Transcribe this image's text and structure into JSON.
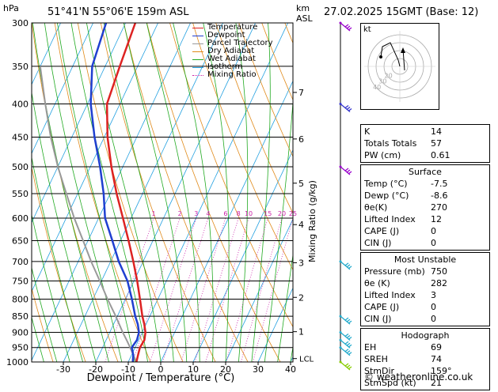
{
  "header": {
    "hpa_unit": "hPa",
    "location": "51°41'N  55°06'E  159m  ASL",
    "km_unit": "km",
    "asl_unit": "ASL",
    "datetime": "27.02.2025  15GMT  (Base: 12)"
  },
  "legend": [
    {
      "label": "Temperature",
      "color": "#dd2222",
      "style": "solid"
    },
    {
      "label": "Dewpoint",
      "color": "#1f3fd0",
      "style": "solid"
    },
    {
      "label": "Parcel Trajectory",
      "color": "#999999",
      "style": "solid"
    },
    {
      "label": "Dry Adiabat",
      "color": "#e08a1a",
      "style": "solid"
    },
    {
      "label": "Wet Adiabat",
      "color": "#22aa22",
      "style": "solid"
    },
    {
      "label": "Isotherm",
      "color": "#22a0e0",
      "style": "solid"
    },
    {
      "label": "Mixing Ratio",
      "color": "#cc22aa",
      "style": "dotted"
    }
  ],
  "chart_data": {
    "type": "line",
    "xlabel": "Dewpoint / Temperature (°C)",
    "ylabel_right": "Mixing Ratio (g/kg)",
    "x_ticks": [
      "-30",
      "-20",
      "-10",
      "0",
      "10",
      "20",
      "30",
      "40"
    ],
    "xlim": [
      -40,
      40
    ],
    "ylim": [
      1000,
      300
    ],
    "pressure_levels": [
      "300",
      "350",
      "400",
      "450",
      "500",
      "550",
      "600",
      "650",
      "700",
      "750",
      "800",
      "850",
      "900",
      "950",
      "1000"
    ],
    "km_ticks": [
      "1",
      "2",
      "3",
      "4",
      "5",
      "6",
      "7"
    ],
    "km_pressures": [
      898,
      795,
      703,
      614,
      530,
      453,
      384
    ],
    "lcl_label": "LCL",
    "lcl_pressure": 988,
    "mixing_ratio_labels": [
      "1",
      "2",
      "3",
      "4",
      "6",
      "8",
      "10",
      "15",
      "20",
      "25"
    ],
    "series": [
      {
        "name": "Temperature",
        "color": "#dd2222",
        "p": [
          1000,
          975,
          950,
          925,
          900,
          875,
          850,
          800,
          750,
          700,
          650,
          600,
          550,
          500,
          450,
          400,
          350,
          300
        ],
        "t": [
          -7.5,
          -8.0,
          -8.5,
          -8.2,
          -9.0,
          -10.5,
          -12.3,
          -15.5,
          -19.0,
          -23.0,
          -27.5,
          -32.5,
          -38.0,
          -43.5,
          -49.0,
          -54.0,
          -55.5,
          -57.0
        ]
      },
      {
        "name": "Dewpoint",
        "color": "#1f3fd0",
        "p": [
          1000,
          975,
          950,
          925,
          900,
          875,
          850,
          800,
          750,
          700,
          650,
          600,
          550,
          500,
          450,
          400,
          350,
          300
        ],
        "t": [
          -8.6,
          -9.5,
          -11.0,
          -10.5,
          -11.0,
          -12.5,
          -14.5,
          -18.0,
          -22.0,
          -27.5,
          -32.5,
          -38.0,
          -42.0,
          -47.0,
          -53.0,
          -59.0,
          -64.0,
          -66.0
        ]
      },
      {
        "name": "Parcel Trajectory",
        "color": "#999999",
        "p": [
          1000,
          975,
          950,
          925,
          900,
          850,
          800,
          750,
          700,
          650,
          600,
          550,
          500,
          450,
          400,
          350
        ],
        "t": [
          -7.5,
          -9.5,
          -11.5,
          -13.7,
          -16.0,
          -20.5,
          -25.5,
          -30.5,
          -36.0,
          -41.5,
          -47.5,
          -53.5,
          -60.0,
          -66.5,
          -73.0,
          -80.0
        ]
      }
    ]
  },
  "wind_barbs": [
    {
      "level": "300",
      "color": "#9900cc"
    },
    {
      "level": "400",
      "color": "#3333cc"
    },
    {
      "level": "500",
      "color": "#9900cc"
    },
    {
      "level": "700",
      "color": "#22aacc"
    },
    {
      "level": "850",
      "color": "#22aacc"
    },
    {
      "level": "900",
      "color": "#22aacc"
    },
    {
      "level": "925",
      "color": "#22aacc"
    },
    {
      "level": "950",
      "color": "#22aacc"
    },
    {
      "level": "1000",
      "color": "#88cc00"
    }
  ],
  "hodograph": {
    "unit": "kt",
    "ring_labels": [
      "20",
      "30",
      "40"
    ],
    "trace_color": "#000000"
  },
  "stats": {
    "indices": [
      {
        "label": "K",
        "value": "14"
      },
      {
        "label": "Totals Totals",
        "value": "57"
      },
      {
        "label": "PW (cm)",
        "value": "0.61"
      }
    ],
    "surface_title": "Surface",
    "surface": [
      {
        "label": "Temp (°C)",
        "value": "-7.5"
      },
      {
        "label": "Dewp (°C)",
        "value": "-8.6"
      },
      {
        "label": "θe(K)",
        "value": "270"
      },
      {
        "label": "Lifted Index",
        "value": "12"
      },
      {
        "label": "CAPE (J)",
        "value": "0"
      },
      {
        "label": "CIN (J)",
        "value": "0"
      }
    ],
    "unstable_title": "Most Unstable",
    "unstable": [
      {
        "label": "Pressure (mb)",
        "value": "750"
      },
      {
        "label": "θe (K)",
        "value": "282"
      },
      {
        "label": "Lifted Index",
        "value": "3"
      },
      {
        "label": "CAPE (J)",
        "value": "0"
      },
      {
        "label": "CIN (J)",
        "value": "0"
      }
    ],
    "hodo_title": "Hodograph",
    "hodo": [
      {
        "label": "EH",
        "value": "69"
      },
      {
        "label": "SREH",
        "value": "74"
      },
      {
        "label": "StmDir",
        "value": "159°"
      },
      {
        "label": "StmSpd (kt)",
        "value": "21"
      }
    ]
  },
  "footer": "© weatheronline.co.uk"
}
